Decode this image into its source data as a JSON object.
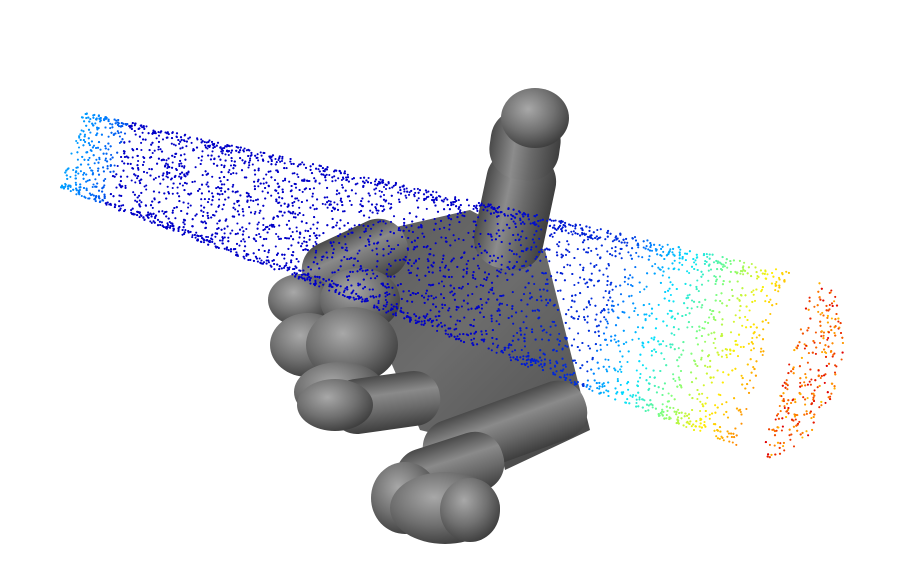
{
  "scene": {
    "background": "#ffffff",
    "subject": "robot-hand-grasping-object",
    "point_cloud": {
      "colormap": "jet",
      "colormap_stops": [
        "#0000c8",
        "#0080ff",
        "#00e0ff",
        "#80ff80",
        "#ffee00",
        "#ff8000",
        "#e00000"
      ],
      "point_count_estimate": 6000
    },
    "hand": {
      "material_color": "#6e6e6e",
      "highlight_color": "#9a9a9a",
      "shadow_color": "#3c3c3c",
      "fingers": [
        "thumb",
        "index",
        "middle",
        "ring",
        "little"
      ]
    }
  }
}
